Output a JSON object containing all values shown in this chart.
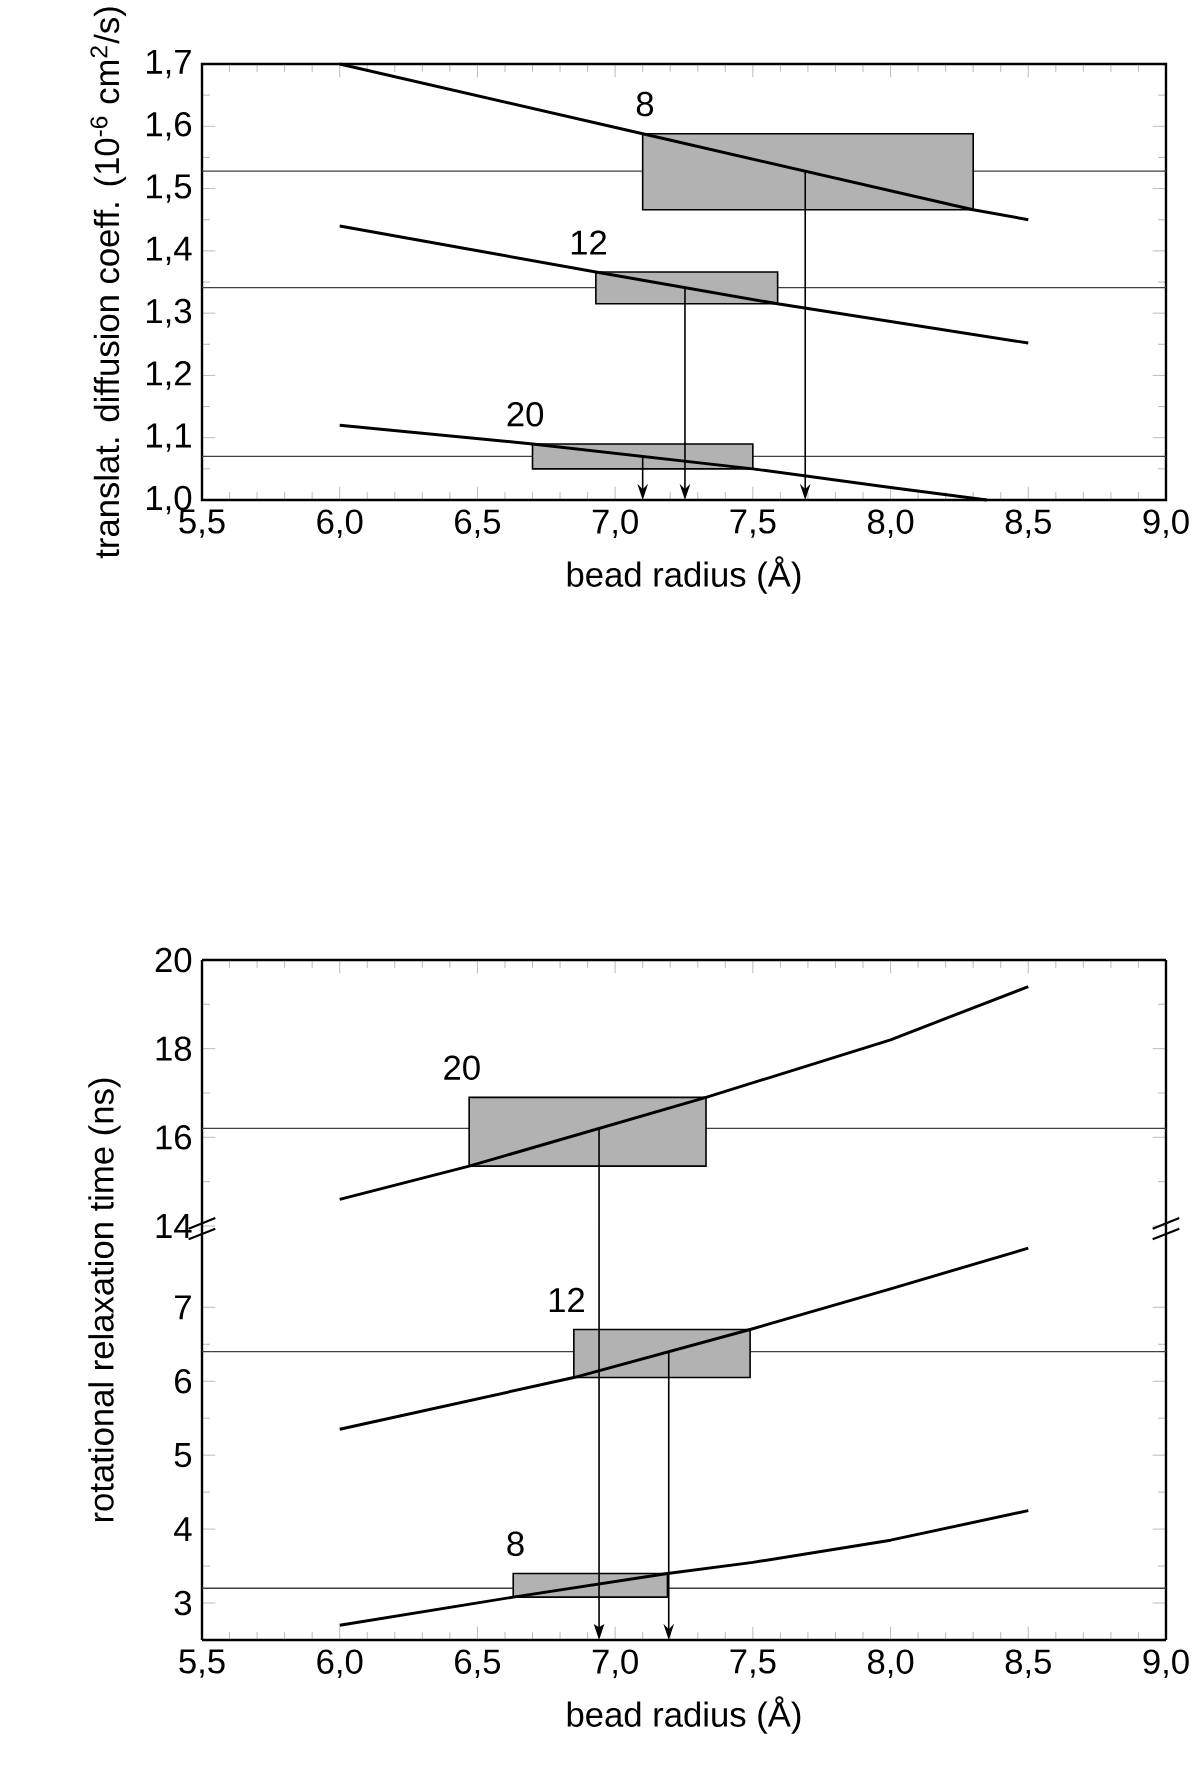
{
  "chart_data": [
    {
      "type": "line",
      "xlabel": "bead radius (Å)",
      "ylabel": "translat. diffusion coeff. (10$^{-6}$ cm$^{2}$/s)",
      "xlim": [
        5.5,
        9.0
      ],
      "xticks": [
        {
          "value": 5.5,
          "label": "5,5"
        },
        {
          "value": 6.0,
          "label": "6,0"
        },
        {
          "value": 6.5,
          "label": "6,5"
        },
        {
          "value": 7.0,
          "label": "7,0"
        },
        {
          "value": 7.5,
          "label": "7,5"
        },
        {
          "value": 8.0,
          "label": "8,0"
        },
        {
          "value": 8.5,
          "label": "8,5"
        },
        {
          "value": 9.0,
          "label": "9,0"
        }
      ],
      "ylim": [
        1.0,
        1.7
      ],
      "yticks": [
        {
          "value": 1.0,
          "label": "1,0"
        },
        {
          "value": 1.1,
          "label": "1,1"
        },
        {
          "value": 1.2,
          "label": "1,2"
        },
        {
          "value": 1.3,
          "label": "1,3"
        },
        {
          "value": 1.4,
          "label": "1,4"
        },
        {
          "value": 1.5,
          "label": "1,5"
        },
        {
          "value": 1.6,
          "label": "1,6"
        },
        {
          "value": 1.7,
          "label": "1,7"
        }
      ],
      "series": [
        {
          "name": "8",
          "color": "#000000",
          "x": [
            6.0,
            7.1,
            8.3,
            8.5
          ],
          "values": [
            1.7,
            1.588,
            1.466,
            1.45
          ],
          "lower": [
            null,
            1.466,
            1.466,
            null
          ],
          "upper": [
            null,
            1.588,
            1.588,
            null
          ]
        },
        {
          "name": "12",
          "color": "#000000",
          "x": [
            6.0,
            6.93,
            7.59,
            8.5
          ],
          "values": [
            1.44,
            1.366,
            1.315,
            1.252
          ],
          "lower": [
            null,
            1.315,
            1.315,
            null
          ],
          "upper": [
            null,
            1.366,
            1.366,
            null
          ]
        },
        {
          "name": "20",
          "color": "#000000",
          "x": [
            6.0,
            6.7,
            7.5,
            8.0,
            8.35
          ],
          "values": [
            1.12,
            1.09,
            1.05,
            1.02,
            1.0
          ],
          "lower": [
            null,
            1.05,
            1.05,
            null,
            null
          ],
          "upper": [
            null,
            1.09,
            1.09,
            null,
            null
          ]
        }
      ],
      "ref_lines": [
        {
          "axis": "y",
          "value": 1.528,
          "color": "#404040"
        },
        {
          "axis": "y",
          "value": 1.341,
          "color": "#404040"
        },
        {
          "axis": "y",
          "value": 1.07,
          "color": "#404040"
        }
      ]
    },
    {
      "type": "line",
      "ylabel": "rotational relaxation time (ns)",
      "tick_labels": "y",
      "xlim": [
        5.5,
        9.0
      ],
      "xticks": [
        5.5,
        6.0,
        6.5,
        7.0,
        7.5,
        8.0,
        8.5,
        9.0
      ],
      "ylim": [
        14,
        20
      ],
      "yticks": [
        14,
        16,
        18,
        20
      ],
      "series": [
        {
          "name": "20",
          "color": "#000000",
          "x": [
            6.0,
            6.47,
            7.33,
            8.0,
            8.5
          ],
          "values": [
            14.6,
            15.35,
            16.9,
            18.2,
            19.4
          ],
          "lower": [
            null,
            15.35,
            15.35,
            null,
            null
          ],
          "upper": [
            null,
            16.9,
            16.9,
            null,
            null
          ]
        }
      ],
      "ref_lines": [
        {
          "axis": "y",
          "value": 16.2,
          "color": "#404040"
        }
      ]
    },
    {
      "type": "line",
      "xlabel": "bead radius (Å)",
      "xlim": [
        5.5,
        9.0
      ],
      "xticks": [
        {
          "value": 5.5,
          "label": "5,5"
        },
        {
          "value": 6.0,
          "label": "6,0"
        },
        {
          "value": 6.5,
          "label": "6,5"
        },
        {
          "value": 7.0,
          "label": "7,0"
        },
        {
          "value": 7.5,
          "label": "7,5"
        },
        {
          "value": 8.0,
          "label": "8,0"
        },
        {
          "value": 8.5,
          "label": "8,5"
        },
        {
          "value": 9.0,
          "label": "9,0"
        }
      ],
      "ylim": [
        2.5,
        8.1
      ],
      "yticks": [
        3,
        4,
        5,
        6,
        7
      ],
      "series": [
        {
          "name": "12",
          "color": "#000000",
          "x": [
            6.0,
            6.85,
            7.49,
            8.0,
            8.5
          ],
          "values": [
            5.35,
            6.05,
            6.7,
            7.25,
            7.8
          ],
          "lower": [
            null,
            6.05,
            6.05,
            null,
            null
          ],
          "upper": [
            null,
            6.7,
            6.7,
            null,
            null
          ]
        },
        {
          "name": "8",
          "color": "#000000",
          "x": [
            6.0,
            6.63,
            7.19,
            7.5,
            8.0,
            8.5
          ],
          "values": [
            2.7,
            3.08,
            3.4,
            3.55,
            3.85,
            4.25
          ],
          "lower": [
            null,
            3.08,
            3.08,
            null,
            null,
            null
          ],
          "upper": [
            null,
            3.4,
            3.4,
            null,
            null,
            null
          ]
        }
      ],
      "ref_lines": [
        {
          "axis": "y",
          "value": 6.4,
          "color": "#404040"
        },
        {
          "axis": "y",
          "value": 3.2,
          "color": "#404040"
        }
      ]
    }
  ]
}
